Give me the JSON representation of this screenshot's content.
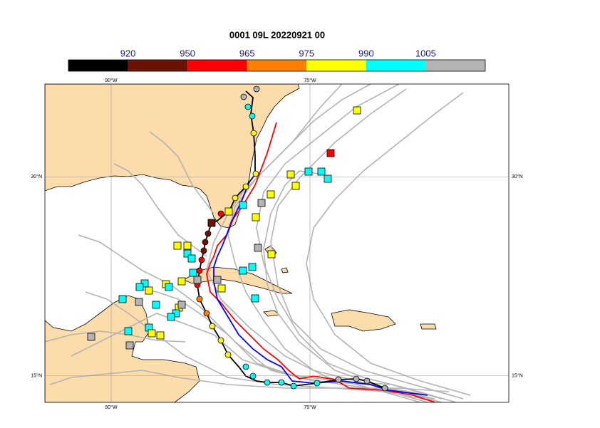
{
  "title": "0001 09L 20220921 00",
  "colorbar": {
    "ticks": [
      920,
      950,
      965,
      975,
      990,
      1005
    ],
    "colors": [
      "#000000",
      "#6b1205",
      "#ff0000",
      "#ff8000",
      "#ffff00",
      "#00ffff",
      "#b3b3b3"
    ]
  },
  "map": {
    "xlim": [
      -95,
      -60
    ],
    "ylim": [
      13,
      37
    ],
    "xticks": [
      {
        "value": -90,
        "label": "90°W"
      },
      {
        "value": -75,
        "label": "75°W"
      }
    ],
    "yticks": [
      {
        "value": 30,
        "label": "30°N"
      },
      {
        "value": 15,
        "label": "15°N"
      }
    ]
  }
}
